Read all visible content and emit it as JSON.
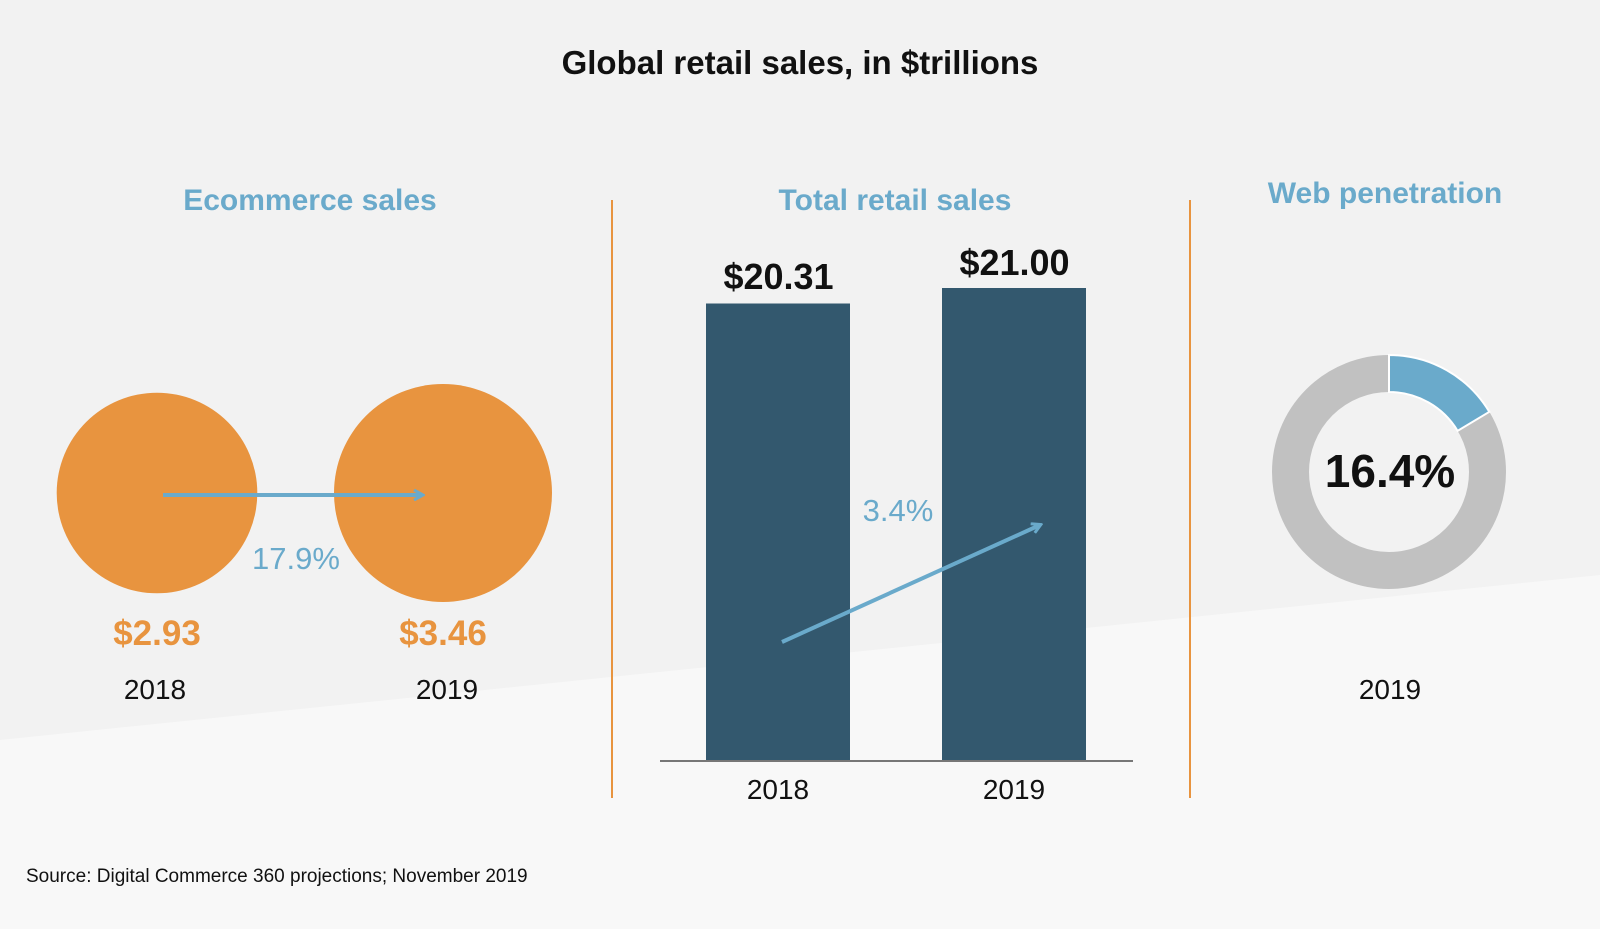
{
  "title": "Global retail sales, in $trillions",
  "source": "Source: Digital Commerce 360 projections; November 2019",
  "colors": {
    "orange": "#e8943f",
    "blue_accent": "#6aaacb",
    "bar_navy": "#33586e",
    "donut_gray": "#c1c1c1",
    "divider": "#e8943f"
  },
  "chart_data": [
    {
      "type": "bubble",
      "title": "Ecommerce sales",
      "categories": [
        "2018",
        "2019"
      ],
      "values": [
        2.93,
        3.46
      ],
      "value_labels": [
        "$2.93",
        "$3.46"
      ],
      "growth_label": "17.9%"
    },
    {
      "type": "bar",
      "title": "Total retail sales",
      "categories": [
        "2018",
        "2019"
      ],
      "values": [
        20.31,
        21.0
      ],
      "value_labels": [
        "$20.31",
        "$21.00"
      ],
      "growth_label": "3.4%"
    },
    {
      "type": "pie",
      "title": "Web penetration",
      "categories": [
        "2019"
      ],
      "values": [
        16.4
      ],
      "center_label": "16.4%"
    }
  ]
}
